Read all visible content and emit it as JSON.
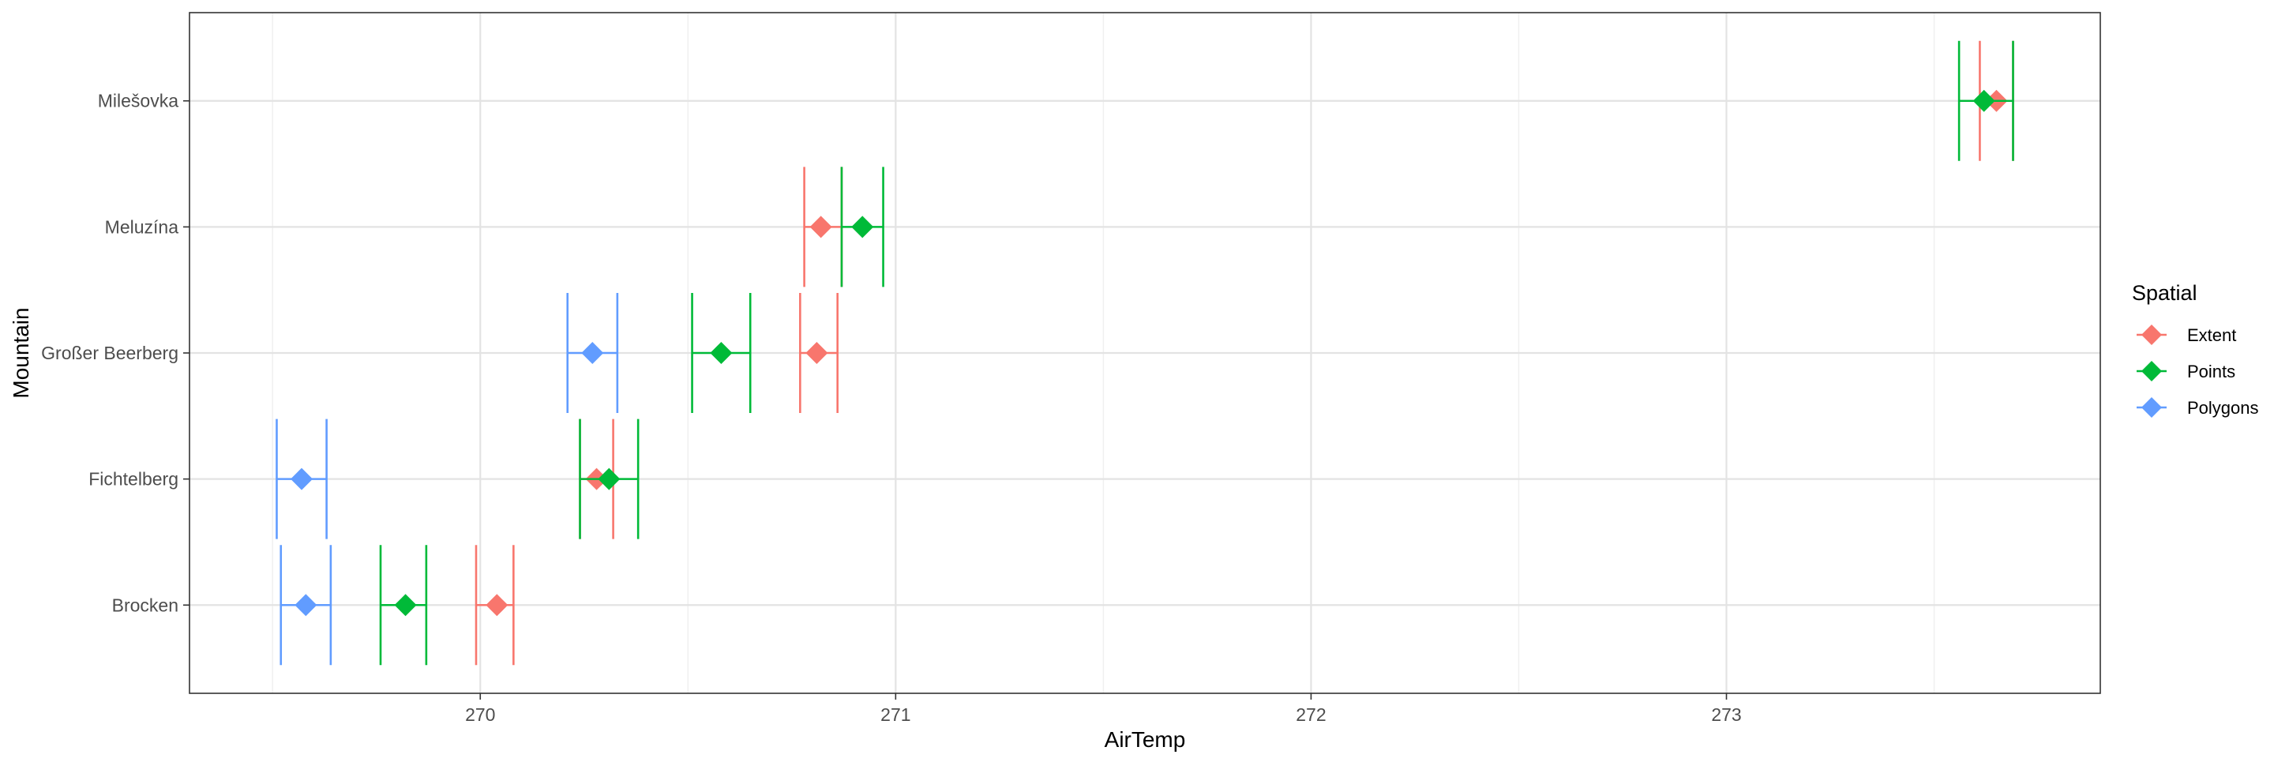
{
  "chart_data": {
    "type": "errorbar-point",
    "xlabel": "AirTemp",
    "ylabel": "Mountain",
    "xlim": [
      269.3,
      273.9
    ],
    "x_ticks": [
      270,
      271,
      272,
      273
    ],
    "x_ticklabels": [
      "270",
      "271",
      "272",
      "273"
    ],
    "x_minor_ticks": [
      269.5,
      270.5,
      271.5,
      272.5,
      273.5
    ],
    "categories": [
      "Brocken",
      "Fichtelberg",
      "Großer Beerberg",
      "Meluzína",
      "Milešovka"
    ],
    "grid": true,
    "legend": {
      "title": "Spatial",
      "position": "right"
    },
    "series": [
      {
        "name": "Extent",
        "color": "#F8766D",
        "points": [
          {
            "category": "Brocken",
            "x": 270.04,
            "xmin": 269.99,
            "xmax": 270.08
          },
          {
            "category": "Fichtelberg",
            "x": 270.28,
            "xmin": 270.24,
            "xmax": 270.32
          },
          {
            "category": "Großer Beerberg",
            "x": 270.81,
            "xmin": 270.77,
            "xmax": 270.86
          },
          {
            "category": "Meluzína",
            "x": 270.82,
            "xmin": 270.78,
            "xmax": 270.87
          },
          {
            "category": "Milešovka",
            "x": 273.65,
            "xmin": 273.61,
            "xmax": 273.69
          }
        ]
      },
      {
        "name": "Points",
        "color": "#00BA38",
        "points": [
          {
            "category": "Brocken",
            "x": 269.82,
            "xmin": 269.76,
            "xmax": 269.87
          },
          {
            "category": "Fichtelberg",
            "x": 270.31,
            "xmin": 270.24,
            "xmax": 270.38
          },
          {
            "category": "Großer Beerberg",
            "x": 270.58,
            "xmin": 270.51,
            "xmax": 270.65
          },
          {
            "category": "Meluzína",
            "x": 270.92,
            "xmin": 270.87,
            "xmax": 270.97
          },
          {
            "category": "Milešovka",
            "x": 273.62,
            "xmin": 273.56,
            "xmax": 273.69
          }
        ]
      },
      {
        "name": "Polygons",
        "color": "#619CFF",
        "points": [
          {
            "category": "Brocken",
            "x": 269.58,
            "xmin": 269.52,
            "xmax": 269.64
          },
          {
            "category": "Fichtelberg",
            "x": 269.57,
            "xmin": 269.51,
            "xmax": 269.63
          },
          {
            "category": "Großer Beerberg",
            "x": 270.27,
            "xmin": 270.21,
            "xmax": 270.33
          }
        ]
      }
    ]
  }
}
